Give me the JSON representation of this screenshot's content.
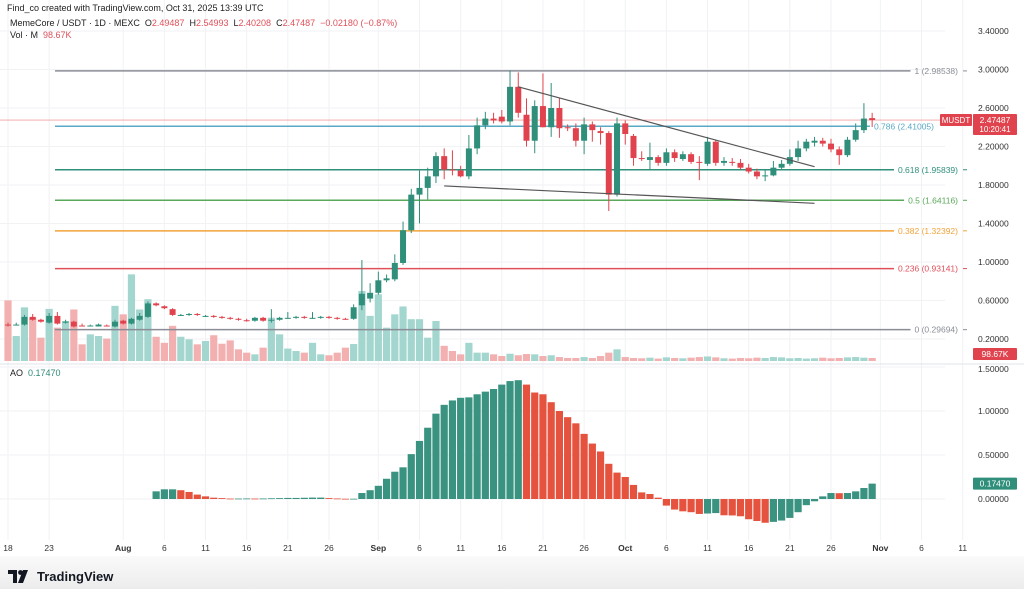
{
  "header": {
    "credit": "Find_co created with TradingView.com, Oct 31, 2025 13:39 UTC",
    "symbol": "MemeCore / USDT · 1D · MEXC",
    "o_label": "O",
    "o": "2.49487",
    "h_label": "H",
    "h": "2.54993",
    "l_label": "L",
    "l": "2.40208",
    "c_label": "C",
    "c": "2.47487",
    "change": "−0.02180 (−0.87%)",
    "vol_label": "Vol · M",
    "vol": "98.67K",
    "ao_label": "AO",
    "ao": "0.17470"
  },
  "branding": {
    "logo_text": "TradingView"
  },
  "colors": {
    "up": "#2f8f7a",
    "down": "#e0434d",
    "vol_up": "#a3d6ce",
    "vol_down": "#f2b0b0",
    "ao_up": "#3a9380",
    "ao_down": "#e5533f",
    "grid": "#f1f2f4"
  },
  "chart_data": {
    "type": "candlestick",
    "title": "MemeCore / USDT · 1D · MEXC",
    "price_axis": {
      "range": [
        0.2,
        3.4
      ],
      "ticks": [
        "3.40000",
        "3.00000",
        "2.60000",
        "2.20000",
        "1.80000",
        "1.40000",
        "1.00000",
        "0.60000",
        "0.20000"
      ],
      "tick_values": [
        3.4,
        3.0,
        2.6,
        2.2,
        1.8,
        1.4,
        1.0,
        0.6,
        0.2
      ]
    },
    "x_axis": {
      "start_date": "Jul 18",
      "ticks": [
        {
          "label": "18",
          "day": 0
        },
        {
          "label": "23",
          "day": 5
        },
        {
          "label": "Aug",
          "day": 14,
          "bold": true
        },
        {
          "label": "6",
          "day": 19
        },
        {
          "label": "11",
          "day": 24
        },
        {
          "label": "16",
          "day": 29
        },
        {
          "label": "21",
          "day": 34
        },
        {
          "label": "26",
          "day": 39
        },
        {
          "label": "Sep",
          "day": 45,
          "bold": true
        },
        {
          "label": "6",
          "day": 50
        },
        {
          "label": "11",
          "day": 55
        },
        {
          "label": "16",
          "day": 60
        },
        {
          "label": "21",
          "day": 65
        },
        {
          "label": "26",
          "day": 70
        },
        {
          "label": "Oct",
          "day": 75,
          "bold": true
        },
        {
          "label": "6",
          "day": 80
        },
        {
          "label": "11",
          "day": 85
        },
        {
          "label": "16",
          "day": 90
        },
        {
          "label": "21",
          "day": 95
        },
        {
          "label": "26",
          "day": 100
        },
        {
          "label": "Nov",
          "day": 106,
          "bold": true
        },
        {
          "label": "6",
          "day": 111
        },
        {
          "label": "11",
          "day": 116
        }
      ]
    },
    "ohlc": [
      [
        0.35,
        0.37,
        0.33,
        0.34
      ],
      [
        0.35,
        0.37,
        0.34,
        0.35
      ],
      [
        0.35,
        0.45,
        0.34,
        0.43
      ],
      [
        0.43,
        0.46,
        0.39,
        0.4
      ],
      [
        0.4,
        0.41,
        0.37,
        0.38
      ],
      [
        0.37,
        0.47,
        0.36,
        0.44
      ],
      [
        0.44,
        0.48,
        0.35,
        0.36
      ],
      [
        0.37,
        0.4,
        0.36,
        0.38
      ],
      [
        0.38,
        0.39,
        0.32,
        0.33
      ],
      [
        0.34,
        0.36,
        0.33,
        0.335
      ],
      [
        0.335,
        0.35,
        0.33,
        0.34
      ],
      [
        0.33,
        0.36,
        0.33,
        0.35
      ],
      [
        0.34,
        0.35,
        0.33,
        0.335
      ],
      [
        0.33,
        0.4,
        0.32,
        0.38
      ],
      [
        0.39,
        0.4,
        0.35,
        0.36
      ],
      [
        0.36,
        0.42,
        0.35,
        0.41
      ],
      [
        0.4,
        0.47,
        0.39,
        0.44
      ],
      [
        0.43,
        0.59,
        0.42,
        0.57
      ],
      [
        0.57,
        0.58,
        0.54,
        0.55
      ],
      [
        0.54,
        0.55,
        0.51,
        0.52
      ],
      [
        0.51,
        0.52,
        0.44,
        0.45
      ],
      [
        0.45,
        0.46,
        0.44,
        0.45
      ],
      [
        0.45,
        0.47,
        0.44,
        0.46
      ],
      [
        0.46,
        0.47,
        0.44,
        0.45
      ],
      [
        0.44,
        0.45,
        0.43,
        0.44
      ],
      [
        0.44,
        0.45,
        0.42,
        0.43
      ],
      [
        0.43,
        0.44,
        0.41,
        0.42
      ],
      [
        0.42,
        0.43,
        0.4,
        0.41
      ],
      [
        0.41,
        0.42,
        0.39,
        0.4
      ],
      [
        0.395,
        0.41,
        0.38,
        0.39
      ],
      [
        0.39,
        0.43,
        0.38,
        0.42
      ],
      [
        0.42,
        0.43,
        0.38,
        0.39
      ],
      [
        0.39,
        0.51,
        0.37,
        0.4
      ],
      [
        0.4,
        0.43,
        0.39,
        0.42
      ],
      [
        0.42,
        0.48,
        0.41,
        0.42
      ],
      [
        0.42,
        0.44,
        0.41,
        0.43
      ],
      [
        0.43,
        0.44,
        0.41,
        0.42
      ],
      [
        0.42,
        0.48,
        0.41,
        0.42
      ],
      [
        0.42,
        0.44,
        0.41,
        0.43
      ],
      [
        0.43,
        0.44,
        0.41,
        0.42
      ],
      [
        0.42,
        0.43,
        0.4,
        0.41
      ],
      [
        0.41,
        0.42,
        0.4,
        0.405
      ],
      [
        0.41,
        0.56,
        0.4,
        0.53
      ],
      [
        0.55,
        1.02,
        0.5,
        0.67
      ],
      [
        0.62,
        0.78,
        0.58,
        0.68
      ],
      [
        0.68,
        0.9,
        0.66,
        0.81
      ],
      [
        0.81,
        0.87,
        0.79,
        0.83
      ],
      [
        0.82,
        1.08,
        0.8,
        0.99
      ],
      [
        0.99,
        1.42,
        0.97,
        1.33
      ],
      [
        1.33,
        1.76,
        1.3,
        1.7
      ],
      [
        1.7,
        1.95,
        1.4,
        1.77
      ],
      [
        1.77,
        1.98,
        1.65,
        1.89
      ],
      [
        1.89,
        2.14,
        1.82,
        2.1
      ],
      [
        2.1,
        2.18,
        1.86,
        1.96
      ],
      [
        1.96,
        2.16,
        1.9,
        1.95
      ],
      [
        1.95,
        2.0,
        1.88,
        1.89
      ],
      [
        1.89,
        2.32,
        1.86,
        2.18
      ],
      [
        2.18,
        2.5,
        2.12,
        2.42
      ],
      [
        2.42,
        2.56,
        2.38,
        2.49
      ],
      [
        2.49,
        2.55,
        2.44,
        2.47
      ],
      [
        2.51,
        2.58,
        2.44,
        2.46
      ],
      [
        2.46,
        2.99,
        2.42,
        2.82
      ],
      [
        2.82,
        2.97,
        2.5,
        2.55
      ],
      [
        2.53,
        2.7,
        2.2,
        2.26
      ],
      [
        2.26,
        2.68,
        2.13,
        2.62
      ],
      [
        2.62,
        2.96,
        2.4,
        2.4
      ],
      [
        2.4,
        2.86,
        2.3,
        2.6
      ],
      [
        2.6,
        2.7,
        2.29,
        2.39
      ],
      [
        2.4,
        2.43,
        2.36,
        2.39
      ],
      [
        2.39,
        2.44,
        2.2,
        2.26
      ],
      [
        2.26,
        2.5,
        2.12,
        2.43
      ],
      [
        2.43,
        2.46,
        2.25,
        2.37
      ],
      [
        2.36,
        2.4,
        2.22,
        2.34
      ],
      [
        2.34,
        2.36,
        1.53,
        1.7
      ],
      [
        1.7,
        2.5,
        1.68,
        2.44
      ],
      [
        2.44,
        2.47,
        2.22,
        2.33
      ],
      [
        2.31,
        2.33,
        2.0,
        2.08
      ],
      [
        2.08,
        2.15,
        2.05,
        2.07
      ],
      [
        2.06,
        2.24,
        1.96,
        2.09
      ],
      [
        2.09,
        2.11,
        2.0,
        2.03
      ],
      [
        2.03,
        2.18,
        2.0,
        2.14
      ],
      [
        2.14,
        2.17,
        2.04,
        2.08
      ],
      [
        2.07,
        2.15,
        2.05,
        2.12
      ],
      [
        2.12,
        2.14,
        2.02,
        2.04
      ],
      [
        2.04,
        2.1,
        1.85,
        2.03
      ],
      [
        2.02,
        2.3,
        2.0,
        2.25
      ],
      [
        2.25,
        2.27,
        2.0,
        2.03
      ],
      [
        2.03,
        2.09,
        2.0,
        2.05
      ],
      [
        2.04,
        2.08,
        2.0,
        2.03
      ],
      [
        2.03,
        2.07,
        1.96,
        1.98
      ],
      [
        1.98,
        2.02,
        1.92,
        1.94
      ],
      [
        1.94,
        1.97,
        1.86,
        1.89
      ],
      [
        1.89,
        1.96,
        1.84,
        1.9
      ],
      [
        1.9,
        2.05,
        1.89,
        1.98
      ],
      [
        1.98,
        2.06,
        1.96,
        2.02
      ],
      [
        2.02,
        2.17,
        2.0,
        2.09
      ],
      [
        2.09,
        2.26,
        2.05,
        2.18
      ],
      [
        2.18,
        2.28,
        2.15,
        2.25
      ],
      [
        2.24,
        2.3,
        2.2,
        2.26
      ],
      [
        2.26,
        2.29,
        2.2,
        2.23
      ],
      [
        2.23,
        2.28,
        2.14,
        2.17
      ],
      [
        2.17,
        2.2,
        2.01,
        2.11
      ],
      [
        2.11,
        2.3,
        2.09,
        2.27
      ],
      [
        2.27,
        2.44,
        2.25,
        2.37
      ],
      [
        2.37,
        2.65,
        2.34,
        2.49
      ],
      [
        2.49487,
        2.54993,
        2.40208,
        2.47487
      ]
    ],
    "volume_k": [
      2000,
      825,
      1770,
      1430,
      770,
      1720,
      1100,
      1320,
      1700,
      550,
      880,
      825,
      740,
      1820,
      1540,
      2860,
      1700,
      2040,
      800,
      600,
      1160,
      800,
      715,
      550,
      660,
      850,
      570,
      680,
      385,
      275,
      220,
      440,
      1430,
      880,
      410,
      330,
      275,
      600,
      220,
      190,
      275,
      440,
      560,
      2310,
      1490,
      2200,
      1100,
      1540,
      1800,
      1380,
      1380,
      770,
      1320,
      500,
      330,
      220,
      600,
      275,
      275,
      220,
      165,
      240,
      190,
      230,
      220,
      165,
      190,
      130,
      100,
      100,
      130,
      100,
      165,
      275,
      385,
      130,
      100,
      90,
      110,
      80,
      120,
      100,
      90,
      110,
      130,
      150,
      120,
      90,
      80,
      100,
      90,
      110,
      100,
      130,
      120,
      90,
      100,
      80,
      90,
      110,
      90,
      100,
      120,
      130,
      110,
      98.67
    ],
    "fib_levels": [
      {
        "level": "1",
        "price": 2.98538,
        "label": "1 (2.98538)",
        "color": "#8a8d96"
      },
      {
        "level": "0.786",
        "price": 2.41005,
        "label": "0.786 (2.41005)",
        "color": "#5aa9c4"
      },
      {
        "level": "0.618",
        "price": 1.95839,
        "label": "0.618 (1.95839)",
        "color": "#2f8f7a"
      },
      {
        "level": "0.5",
        "price": 1.64116,
        "label": "0.5 (1.64116)",
        "color": "#5aa85a"
      },
      {
        "level": "0.382",
        "price": 1.32392,
        "label": "0.382 (1.32392)",
        "color": "#f2a23a"
      },
      {
        "level": "0.236",
        "price": 0.93141,
        "label": "0.236 (0.93141)",
        "color": "#e0505a"
      },
      {
        "level": "0",
        "price": 0.29694,
        "label": "0 (0.29694)",
        "color": "#8a8d96"
      }
    ],
    "trendlines": [
      {
        "name": "upper",
        "from": [
          62,
          2.82
        ],
        "to": [
          98,
          1.99
        ]
      },
      {
        "name": "lower",
        "from": [
          53,
          1.79
        ],
        "to": [
          98,
          1.61
        ]
      }
    ],
    "last_price": {
      "symbol": "MUSDT",
      "price": "2.47487",
      "countdown": "10:20:41",
      "value": 2.47487
    },
    "volume_last_label": "98.67K",
    "ao": {
      "start_day": 18,
      "axis_ticks": [
        "1.50000",
        "1.00000",
        "0.50000",
        "0.00000"
      ],
      "tick_values": [
        1.5,
        1.0,
        0.5,
        0.0
      ],
      "last_label": "0.17470",
      "values": [
        0.087,
        0.11,
        0.11,
        0.1,
        0.08,
        0.05,
        0.03,
        0.015,
        0.01,
        0.005,
        0.005,
        0.006,
        0.005,
        0.006,
        0.008,
        0.01,
        0.012,
        0.012,
        0.014,
        0.016,
        0.016,
        0.01,
        0.006,
        0.003,
        0.003,
        0.068,
        0.1,
        0.15,
        0.23,
        0.31,
        0.36,
        0.51,
        0.66,
        0.81,
        0.97,
        1.07,
        1.12,
        1.15,
        1.155,
        1.19,
        1.22,
        1.25,
        1.3,
        1.34,
        1.35,
        1.3,
        1.21,
        1.19,
        1.1,
        1.0,
        0.93,
        0.86,
        0.74,
        0.63,
        0.54,
        0.4,
        0.3,
        0.25,
        0.16,
        0.075,
        0.057,
        0.015,
        -0.075,
        -0.12,
        -0.14,
        -0.15,
        -0.17,
        -0.165,
        -0.16,
        -0.185,
        -0.187,
        -0.196,
        -0.23,
        -0.25,
        -0.27,
        -0.26,
        -0.245,
        -0.215,
        -0.15,
        -0.07,
        -0.026,
        0.03,
        0.068,
        0.066,
        0.068,
        0.087,
        0.125,
        0.1747
      ]
    }
  }
}
